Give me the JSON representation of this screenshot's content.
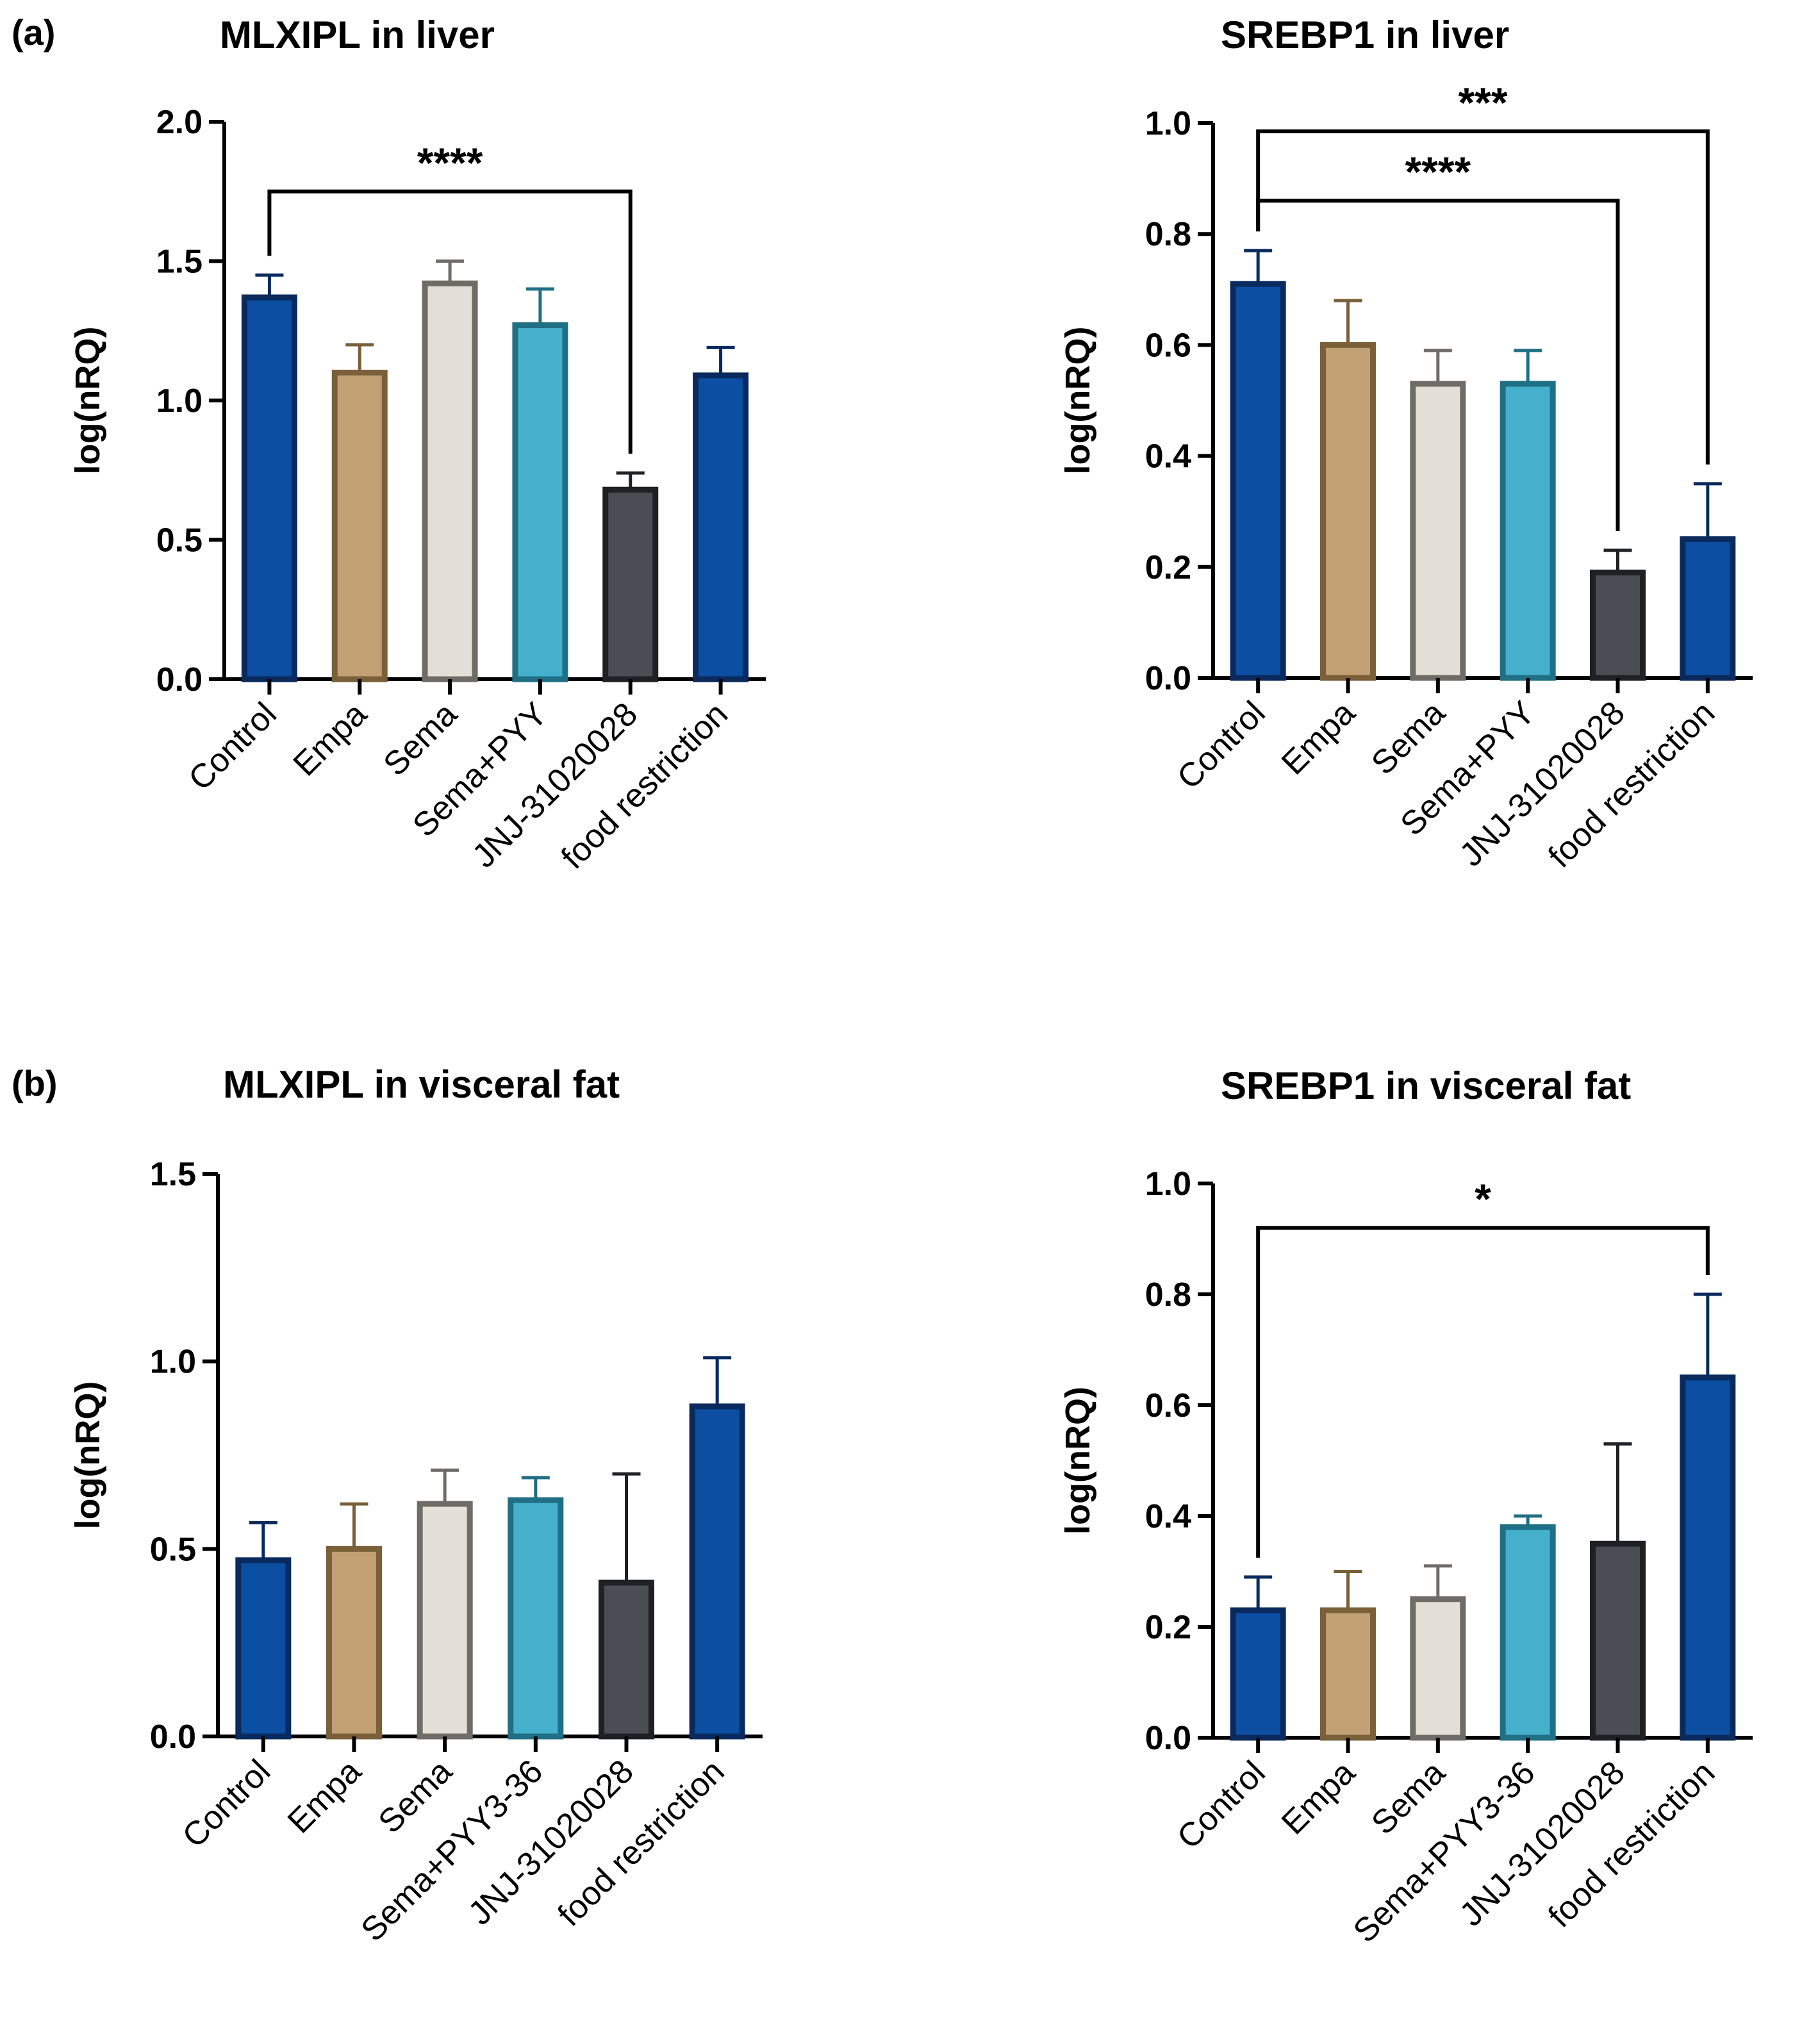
{
  "panel_labels": [
    "(a)",
    "(b)"
  ],
  "colors": {
    "Control": {
      "fill": "#0B4EA2",
      "stroke": "#0A2A5E"
    },
    "Empa": {
      "fill": "#C2A073",
      "stroke": "#7A6038"
    },
    "Sema": {
      "fill": "#E4DFD6",
      "stroke": "#6F6B66"
    },
    "Sema+PYY": {
      "fill": "#44B0CC",
      "stroke": "#1F6F85"
    },
    "JNJ": {
      "fill": "#4A4E54",
      "stroke": "#1E2024"
    },
    "food restriction": {
      "fill": "#0B4EA2",
      "stroke": "#0A2A5E"
    },
    "axis": "#000000",
    "error": "#1a1a1a"
  },
  "chart_data": [
    {
      "type": "bar",
      "title": "MLXIPL in liver",
      "ylabel": "log(nRQ)",
      "categories": [
        "Control",
        "Empa",
        "Sema",
        "Sema+PYY",
        "JNJ-31020028",
        "food restriction"
      ],
      "color_keys": [
        "Control",
        "Empa",
        "Sema",
        "Sema+PYY",
        "JNJ",
        "food restriction"
      ],
      "values": [
        1.37,
        1.1,
        1.42,
        1.27,
        0.68,
        1.09
      ],
      "errors": [
        0.08,
        0.1,
        0.08,
        0.13,
        0.06,
        0.1
      ],
      "ylim": [
        0,
        2.0
      ],
      "yticks": [
        "0.0",
        "0.5",
        "1.0",
        "1.5",
        "2.0"
      ],
      "significance": [
        {
          "from": 0,
          "to": 4,
          "label": "****",
          "level": 1.75
        }
      ]
    },
    {
      "type": "bar",
      "title": "SREBP1 in liver",
      "ylabel": "log(nRQ)",
      "categories": [
        "Control",
        "Empa",
        "Sema",
        "Sema+PYY",
        "JNJ-31020028",
        "food restriction"
      ],
      "color_keys": [
        "Control",
        "Empa",
        "Sema",
        "Sema+PYY",
        "JNJ",
        "food restriction"
      ],
      "values": [
        0.71,
        0.6,
        0.53,
        0.53,
        0.19,
        0.25
      ],
      "errors": [
        0.06,
        0.08,
        0.06,
        0.06,
        0.04,
        0.1
      ],
      "ylim": [
        0,
        1.0
      ],
      "yticks": [
        "0.0",
        "0.2",
        "0.4",
        "0.6",
        "0.8",
        "1.0"
      ],
      "significance": [
        {
          "from": 0,
          "to": 5,
          "label": "***",
          "level": 0.985
        },
        {
          "from": 0,
          "to": 4,
          "label": "****",
          "level": 0.86
        }
      ]
    },
    {
      "type": "bar",
      "title": "MLXIPL in visceral fat",
      "ylabel": "log(nRQ)",
      "categories": [
        "Control",
        "Empa",
        "Sema",
        "Sema+PYY3-36",
        "JNJ-31020028",
        "food restriction"
      ],
      "color_keys": [
        "Control",
        "Empa",
        "Sema",
        "Sema+PYY",
        "JNJ",
        "food restriction"
      ],
      "values": [
        0.47,
        0.5,
        0.62,
        0.63,
        0.41,
        0.88
      ],
      "errors": [
        0.1,
        0.12,
        0.09,
        0.06,
        0.29,
        0.13
      ],
      "ylim": [
        0,
        1.5
      ],
      "yticks": [
        "0.0",
        "0.5",
        "1.0",
        "1.5"
      ],
      "significance": []
    },
    {
      "type": "bar",
      "title": "SREBP1 in visceral fat",
      "ylabel": "log(nRQ)",
      "categories": [
        "Control",
        "Empa",
        "Sema",
        "Sema+PYY3-36",
        "JNJ-31020028",
        "food restriction"
      ],
      "color_keys": [
        "Control",
        "Empa",
        "Sema",
        "Sema+PYY",
        "JNJ",
        "food restriction"
      ],
      "values": [
        0.23,
        0.23,
        0.25,
        0.38,
        0.35,
        0.65
      ],
      "errors": [
        0.06,
        0.07,
        0.06,
        0.02,
        0.18,
        0.15
      ],
      "ylim": [
        0,
        1.0
      ],
      "yticks": [
        "0.0",
        "0.2",
        "0.4",
        "0.6",
        "0.8",
        "1.0"
      ],
      "significance": [
        {
          "from": 0,
          "to": 5,
          "label": "*",
          "level": 0.92
        }
      ]
    }
  ]
}
